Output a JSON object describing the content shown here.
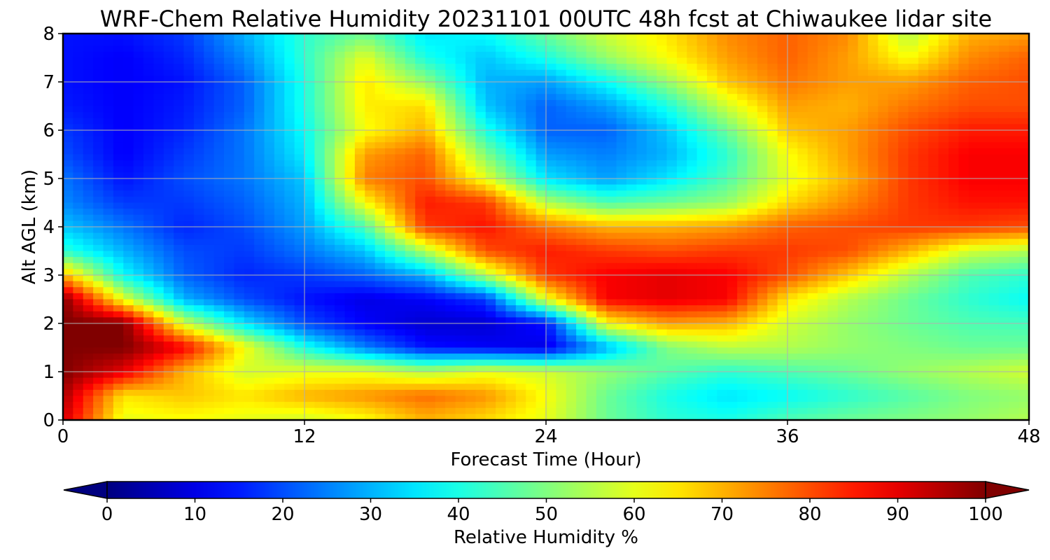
{
  "chart_data": {
    "type": "heatmap",
    "title": "WRF-Chem Relative Humidity 20231101 00UTC 48h fcst at Chiwaukee lidar site",
    "xlabel": "Forecast Time (Hour)",
    "ylabel": "Alt AGL (km)",
    "xlim": [
      0,
      48
    ],
    "ylim": [
      0,
      8
    ],
    "x_ticks": [
      "0",
      "12",
      "24",
      "36",
      "48"
    ],
    "y_ticks": [
      "0",
      "1",
      "2",
      "3",
      "4",
      "5",
      "6",
      "7",
      "8"
    ],
    "grid": true,
    "colormap": "jet",
    "colorbar": {
      "label": "Relative Humidity %",
      "range": [
        0,
        100
      ],
      "ticks": [
        "0",
        "10",
        "20",
        "30",
        "40",
        "50",
        "60",
        "70",
        "80",
        "90",
        "100"
      ],
      "extend": "both",
      "orientation": "horizontal",
      "location": "bottom"
    },
    "x": [
      0,
      3,
      6,
      9,
      12,
      15,
      18,
      21,
      24,
      27,
      30,
      33,
      36,
      39,
      42,
      45,
      48
    ],
    "y": [
      0,
      0.5,
      1,
      1.5,
      2,
      2.5,
      3,
      3.5,
      4,
      4.5,
      5,
      5.5,
      6,
      6.5,
      7,
      7.5,
      8
    ],
    "z": [
      [
        92,
        60,
        62,
        60,
        58,
        62,
        70,
        66,
        60,
        48,
        42,
        40,
        45,
        48,
        50,
        52,
        55
      ],
      [
        96,
        65,
        68,
        65,
        70,
        73,
        77,
        73,
        62,
        48,
        40,
        35,
        38,
        42,
        46,
        50,
        52
      ],
      [
        100,
        90,
        70,
        58,
        60,
        60,
        55,
        60,
        58,
        52,
        46,
        42,
        45,
        48,
        52,
        55,
        58
      ],
      [
        100,
        100,
        88,
        62,
        40,
        25,
        14,
        12,
        10,
        30,
        50,
        56,
        55,
        52,
        50,
        48,
        48
      ],
      [
        100,
        100,
        58,
        35,
        20,
        12,
        8,
        8,
        14,
        62,
        72,
        70,
        58,
        52,
        48,
        45,
        44
      ],
      [
        100,
        60,
        30,
        20,
        14,
        10,
        12,
        18,
        60,
        88,
        90,
        88,
        65,
        55,
        48,
        42,
        38
      ],
      [
        70,
        38,
        22,
        16,
        18,
        22,
        30,
        55,
        82,
        88,
        90,
        88,
        80,
        68,
        55,
        45,
        42
      ],
      [
        42,
        30,
        20,
        18,
        24,
        32,
        55,
        80,
        85,
        82,
        80,
        82,
        82,
        80,
        70,
        58,
        55
      ],
      [
        32,
        24,
        16,
        20,
        28,
        45,
        82,
        86,
        76,
        70,
        70,
        72,
        78,
        80,
        82,
        82,
        80
      ],
      [
        26,
        18,
        18,
        22,
        30,
        62,
        85,
        82,
        55,
        45,
        48,
        52,
        66,
        74,
        82,
        86,
        86
      ],
      [
        24,
        14,
        20,
        24,
        32,
        75,
        80,
        60,
        35,
        28,
        35,
        45,
        60,
        70,
        82,
        88,
        88
      ],
      [
        20,
        12,
        18,
        24,
        36,
        72,
        78,
        50,
        28,
        25,
        30,
        42,
        62,
        72,
        82,
        88,
        88
      ],
      [
        18,
        12,
        16,
        24,
        38,
        62,
        70,
        40,
        22,
        22,
        32,
        48,
        68,
        72,
        80,
        85,
        85
      ],
      [
        15,
        12,
        15,
        22,
        40,
        64,
        66,
        32,
        22,
        28,
        40,
        58,
        72,
        70,
        76,
        80,
        80
      ],
      [
        14,
        12,
        14,
        22,
        40,
        65,
        52,
        30,
        28,
        38,
        52,
        68,
        76,
        72,
        72,
        78,
        80
      ],
      [
        14,
        12,
        16,
        26,
        42,
        60,
        40,
        32,
        40,
        52,
        62,
        72,
        78,
        72,
        62,
        74,
        78
      ],
      [
        14,
        14,
        18,
        30,
        42,
        48,
        35,
        38,
        48,
        58,
        65,
        74,
        78,
        74,
        55,
        70,
        72
      ]
    ]
  }
}
